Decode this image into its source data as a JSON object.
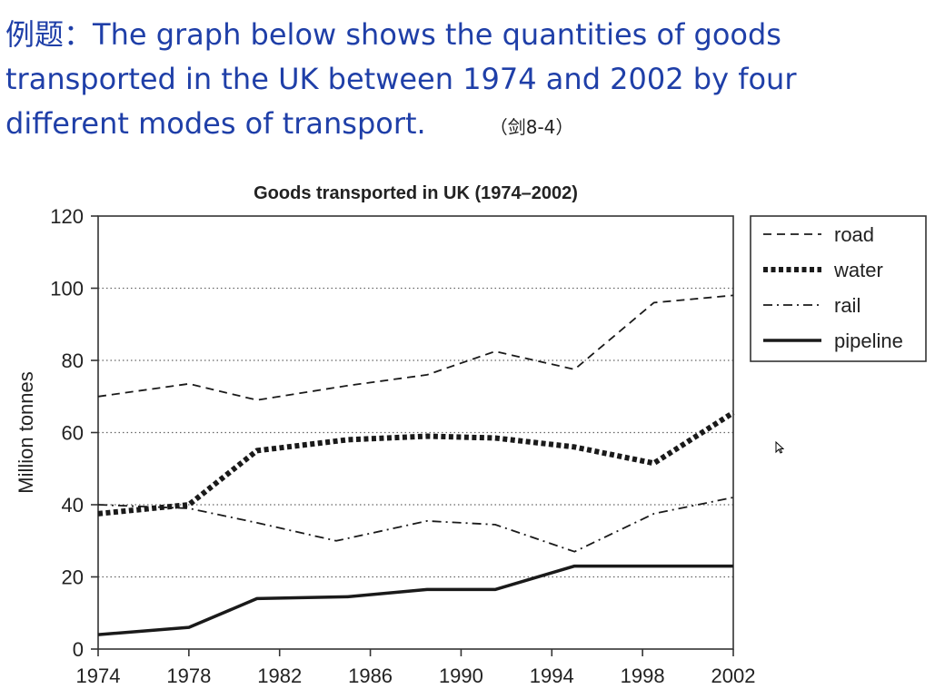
{
  "heading": {
    "prefix": "例题：",
    "text": "The graph below shows the quantities of goods transported in the UK between 1974 and 2002 by four different modes of transport.",
    "source": "（剑8-4）"
  },
  "chart_data": {
    "type": "line",
    "title": "Goods transported in UK (1974–2002)",
    "xlabel": "",
    "ylabel": "Million tonnes",
    "xlim": [
      1974,
      2002
    ],
    "ylim": [
      0,
      120
    ],
    "x_ticks": [
      1974,
      1978,
      1982,
      1986,
      1990,
      1994,
      1998,
      2002
    ],
    "y_ticks": [
      0,
      20,
      40,
      60,
      80,
      100,
      120
    ],
    "grid": "horizontal dotted",
    "legend_position": "right",
    "series": [
      {
        "name": "road",
        "style": "dashed",
        "points": [
          [
            1974,
            70
          ],
          [
            1978,
            73.5
          ],
          [
            1981,
            69
          ],
          [
            1985,
            73
          ],
          [
            1988.5,
            76
          ],
          [
            1991.5,
            82.5
          ],
          [
            1995,
            77.5
          ],
          [
            1998.5,
            96
          ],
          [
            2002,
            98
          ]
        ]
      },
      {
        "name": "water",
        "style": "dotted-thick",
        "points": [
          [
            1974,
            37.5
          ],
          [
            1978,
            40
          ],
          [
            1981,
            55
          ],
          [
            1985,
            58
          ],
          [
            1988.5,
            59
          ],
          [
            1991.5,
            58.5
          ],
          [
            1995,
            56
          ],
          [
            1998.5,
            51.5
          ],
          [
            2002,
            65.5
          ]
        ]
      },
      {
        "name": "rail",
        "style": "dashdot",
        "points": [
          [
            1974,
            40
          ],
          [
            1978,
            39
          ],
          [
            1981,
            35
          ],
          [
            1984.5,
            30
          ],
          [
            1988.5,
            35.5
          ],
          [
            1991.5,
            34.5
          ],
          [
            1995,
            27
          ],
          [
            1998.5,
            37.5
          ],
          [
            2002,
            42
          ]
        ]
      },
      {
        "name": "pipeline",
        "style": "solid",
        "points": [
          [
            1974,
            4
          ],
          [
            1978,
            6
          ],
          [
            1981,
            14
          ],
          [
            1985,
            14.5
          ],
          [
            1988.5,
            16.5
          ],
          [
            1991.5,
            16.5
          ],
          [
            1995,
            23
          ],
          [
            1998.5,
            23
          ],
          [
            2002,
            23
          ]
        ]
      }
    ]
  }
}
